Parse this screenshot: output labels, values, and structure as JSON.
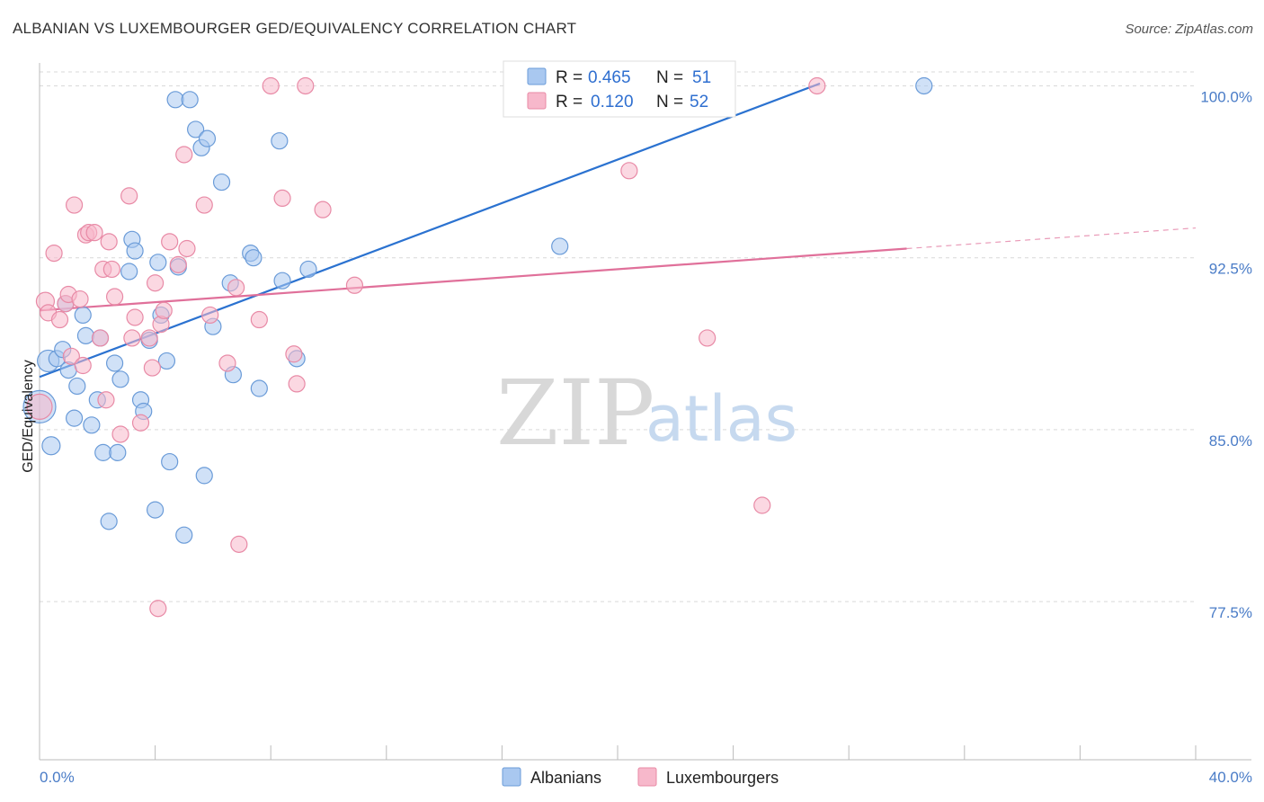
{
  "header": {
    "title": "ALBANIAN VS LUXEMBOURGER GED/EQUIVALENCY CORRELATION CHART",
    "source": "Source: ZipAtlas.com"
  },
  "watermark": {
    "zip": "ZIP",
    "atlas": "atlas"
  },
  "legend": {
    "rows": [
      {
        "r_label": "R =",
        "r_value": "0.465",
        "n_label": "N =",
        "n_value": "51",
        "color": "#a9c8f0"
      },
      {
        "r_label": "R =",
        "r_value": "0.120",
        "n_label": "N =",
        "n_value": "52",
        "color": "#f7b8cb"
      }
    ]
  },
  "bottom_legend": [
    "Albanians",
    "Luxembourgers"
  ],
  "chart_data": {
    "type": "scatter",
    "title": "ALBANIAN VS LUXEMBOURGER GED/EQUIVALENCY CORRELATION CHART",
    "xlabel": "",
    "ylabel": "GED/Equivalency",
    "xlim": [
      0,
      40
    ],
    "ylim": [
      70.6,
      101.0
    ],
    "x_tick_labels": [
      {
        "value": 0,
        "label": "0.0%"
      },
      {
        "value": 40,
        "label": "40.0%"
      }
    ],
    "y_tick_labels": [
      {
        "value": 100,
        "label": "100.0%"
      },
      {
        "value": 92.5,
        "label": "92.5%"
      },
      {
        "value": 85,
        "label": "85.0%"
      },
      {
        "value": 77.5,
        "label": "77.5%"
      }
    ],
    "grid": true,
    "legend_position": "top-center",
    "series": [
      {
        "name": "Albanians",
        "color": "#a9c8f0",
        "edge_color": "#6a9bd8",
        "line_color": "#2b72d0",
        "trend": {
          "x": [
            0,
            27.0
          ],
          "y": [
            87.3,
            100.1
          ]
        },
        "points": [
          [
            0.0,
            86.0,
            18
          ],
          [
            0.3,
            88.0,
            12
          ],
          [
            0.4,
            84.3,
            10
          ],
          [
            0.6,
            88.1,
            9
          ],
          [
            0.8,
            88.5,
            9
          ],
          [
            0.9,
            90.5,
            9
          ],
          [
            1.0,
            87.6,
            9
          ],
          [
            1.2,
            85.5,
            9
          ],
          [
            1.3,
            86.9,
            9
          ],
          [
            1.5,
            90.0,
            9
          ],
          [
            1.6,
            89.1,
            9
          ],
          [
            1.8,
            85.2,
            9
          ],
          [
            2.0,
            86.3,
            9
          ],
          [
            2.1,
            89.0,
            9
          ],
          [
            2.2,
            84.0,
            9
          ],
          [
            2.4,
            81.0,
            9
          ],
          [
            2.6,
            87.9,
            9
          ],
          [
            2.7,
            84.0,
            9
          ],
          [
            2.8,
            87.2,
            9
          ],
          [
            3.1,
            91.9,
            9
          ],
          [
            3.2,
            93.3,
            9
          ],
          [
            3.3,
            92.8,
            9
          ],
          [
            3.5,
            86.3,
            9
          ],
          [
            3.6,
            85.8,
            9
          ],
          [
            3.8,
            88.9,
            9
          ],
          [
            4.0,
            81.5,
            9
          ],
          [
            4.1,
            92.3,
            9
          ],
          [
            4.2,
            90.0,
            9
          ],
          [
            4.4,
            88.0,
            9
          ],
          [
            4.5,
            83.6,
            9
          ],
          [
            4.7,
            99.4,
            9
          ],
          [
            4.8,
            92.1,
            9
          ],
          [
            5.0,
            80.4,
            9
          ],
          [
            5.2,
            99.4,
            9
          ],
          [
            5.4,
            98.1,
            9
          ],
          [
            5.6,
            97.3,
            9
          ],
          [
            5.7,
            83.0,
            9
          ],
          [
            5.8,
            97.7,
            9
          ],
          [
            6.0,
            89.5,
            9
          ],
          [
            6.3,
            95.8,
            9
          ],
          [
            6.6,
            91.4,
            9
          ],
          [
            6.7,
            87.4,
            9
          ],
          [
            7.3,
            92.7,
            9
          ],
          [
            7.4,
            92.5,
            9
          ],
          [
            7.6,
            86.8,
            9
          ],
          [
            8.3,
            97.6,
            9
          ],
          [
            8.4,
            91.5,
            9
          ],
          [
            8.9,
            88.1,
            9
          ],
          [
            9.3,
            92.0,
            9
          ],
          [
            18.0,
            93.0,
            9
          ],
          [
            30.6,
            100.0,
            9
          ]
        ]
      },
      {
        "name": "Luxembourgers",
        "color": "#f7b8cb",
        "edge_color": "#e88aa6",
        "line_color": "#e0709a",
        "trend": {
          "x": [
            0,
            30.0
          ],
          "y": [
            90.2,
            92.9
          ]
        },
        "trend_dashed": {
          "x": [
            30.0,
            40.0
          ],
          "y": [
            92.9,
            93.8
          ]
        },
        "points": [
          [
            0.0,
            86.0,
            14
          ],
          [
            0.2,
            90.6,
            10
          ],
          [
            0.3,
            90.1,
            9
          ],
          [
            0.5,
            92.7,
            9
          ],
          [
            0.7,
            89.8,
            9
          ],
          [
            0.9,
            90.5,
            9
          ],
          [
            1.0,
            90.9,
            9
          ],
          [
            1.1,
            88.2,
            9
          ],
          [
            1.2,
            94.8,
            9
          ],
          [
            1.4,
            90.7,
            9
          ],
          [
            1.5,
            87.8,
            9
          ],
          [
            1.6,
            93.5,
            9
          ],
          [
            1.7,
            93.6,
            9
          ],
          [
            1.9,
            93.6,
            9
          ],
          [
            2.1,
            89.0,
            9
          ],
          [
            2.2,
            92.0,
            9
          ],
          [
            2.3,
            86.3,
            9
          ],
          [
            2.4,
            93.2,
            9
          ],
          [
            2.5,
            92.0,
            9
          ],
          [
            2.6,
            90.8,
            9
          ],
          [
            2.8,
            84.8,
            9
          ],
          [
            3.1,
            95.2,
            9
          ],
          [
            3.2,
            89.0,
            9
          ],
          [
            3.3,
            89.9,
            9
          ],
          [
            3.5,
            85.3,
            9
          ],
          [
            3.8,
            89.0,
            9
          ],
          [
            3.9,
            87.7,
            9
          ],
          [
            4.0,
            91.4,
            9
          ],
          [
            4.1,
            77.2,
            9
          ],
          [
            4.2,
            89.6,
            9
          ],
          [
            4.3,
            90.2,
            9
          ],
          [
            4.5,
            93.2,
            9
          ],
          [
            4.8,
            92.2,
            9
          ],
          [
            5.0,
            97.0,
            9
          ],
          [
            5.1,
            92.9,
            9
          ],
          [
            5.7,
            94.8,
            9
          ],
          [
            5.9,
            90.0,
            9
          ],
          [
            6.5,
            87.9,
            9
          ],
          [
            6.8,
            91.2,
            9
          ],
          [
            6.9,
            80.0,
            9
          ],
          [
            7.6,
            89.8,
            9
          ],
          [
            8.0,
            100.0,
            9
          ],
          [
            8.4,
            95.1,
            9
          ],
          [
            8.8,
            88.3,
            9
          ],
          [
            8.9,
            87.0,
            9
          ],
          [
            9.2,
            100.0,
            9
          ],
          [
            9.8,
            94.6,
            9
          ],
          [
            10.9,
            91.3,
            9
          ],
          [
            20.4,
            96.3,
            9
          ],
          [
            23.1,
            89.0,
            9
          ],
          [
            25.0,
            81.7,
            9
          ],
          [
            26.9,
            100.0,
            9
          ]
        ]
      }
    ]
  }
}
